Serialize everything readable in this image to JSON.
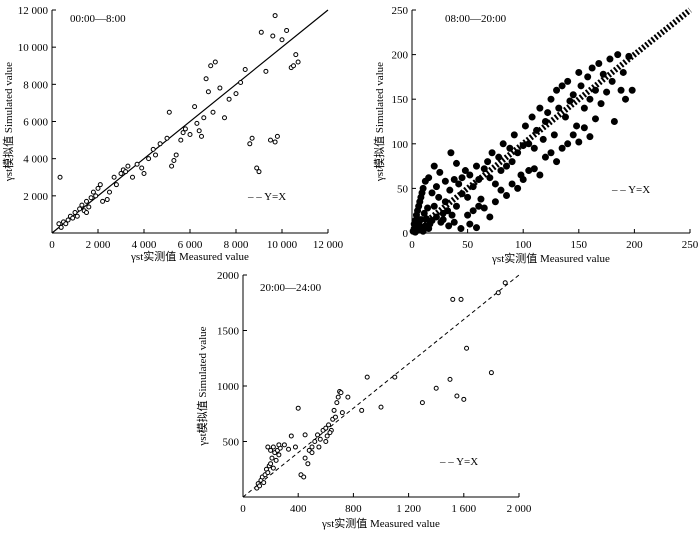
{
  "chart_data": [
    {
      "type": "scatter",
      "title": "00:00—8:00",
      "xlabel": "γst实测值 Measured value",
      "ylabel": "γst模拟值 Simulated value",
      "xlim": [
        0,
        12000
      ],
      "ylim": [
        0,
        12000
      ],
      "xticks": [
        0,
        2000,
        4000,
        6000,
        8000,
        10000,
        12000
      ],
      "xtick_labels": [
        "0",
        "2 000",
        "4 000",
        "6 000",
        "8 000",
        "10 000",
        "12 000"
      ],
      "yticks": [
        2000,
        4000,
        6000,
        8000,
        10000,
        12000
      ],
      "ytick_labels": [
        "2 000",
        "4 000",
        "6 000",
        "8 000",
        "10 000",
        "12 000"
      ],
      "reference_line": {
        "label": "Y=X",
        "style": "solid"
      },
      "legend_text": "– – Y=X",
      "legend_position": "bottom-right",
      "marker": "open-circle",
      "grid": false,
      "points": [
        [
          300,
          500
        ],
        [
          400,
          300
        ],
        [
          500,
          600
        ],
        [
          600,
          500
        ],
        [
          700,
          700
        ],
        [
          800,
          900
        ],
        [
          900,
          800
        ],
        [
          1000,
          1100
        ],
        [
          1100,
          900
        ],
        [
          1200,
          1300
        ],
        [
          1300,
          1500
        ],
        [
          1400,
          1200
        ],
        [
          1500,
          1700
        ],
        [
          1600,
          1400
        ],
        [
          1700,
          1900
        ],
        [
          1800,
          2200
        ],
        [
          1900,
          2000
        ],
        [
          2000,
          2400
        ],
        [
          2100,
          2600
        ],
        [
          350,
          3000
        ],
        [
          2400,
          1800
        ],
        [
          2500,
          2200
        ],
        [
          2700,
          3000
        ],
        [
          2800,
          2600
        ],
        [
          3000,
          3200
        ],
        [
          3100,
          3400
        ],
        [
          3200,
          3300
        ],
        [
          3300,
          3600
        ],
        [
          3500,
          3000
        ],
        [
          3700,
          3700
        ],
        [
          3900,
          3500
        ],
        [
          4000,
          3200
        ],
        [
          4200,
          4000
        ],
        [
          4400,
          4500
        ],
        [
          4500,
          4200
        ],
        [
          4700,
          4800
        ],
        [
          5000,
          5100
        ],
        [
          5100,
          6500
        ],
        [
          5200,
          3600
        ],
        [
          5300,
          3900
        ],
        [
          5400,
          4200
        ],
        [
          5600,
          5000
        ],
        [
          5800,
          5600
        ],
        [
          6000,
          5300
        ],
        [
          6200,
          6800
        ],
        [
          6400,
          5500
        ],
        [
          6500,
          5200
        ],
        [
          6600,
          6200
        ],
        [
          6700,
          8300
        ],
        [
          6800,
          7600
        ],
        [
          6900,
          9000
        ],
        [
          7000,
          6500
        ],
        [
          7100,
          9200
        ],
        [
          7300,
          7800
        ],
        [
          7500,
          6200
        ],
        [
          7700,
          7200
        ],
        [
          8000,
          7500
        ],
        [
          8200,
          8100
        ],
        [
          8400,
          8800
        ],
        [
          8600,
          4800
        ],
        [
          8700,
          5100
        ],
        [
          8900,
          3500
        ],
        [
          9000,
          3300
        ],
        [
          9100,
          10800
        ],
        [
          9300,
          8700
        ],
        [
          9500,
          5000
        ],
        [
          9600,
          10600
        ],
        [
          9700,
          11700
        ],
        [
          9800,
          5200
        ],
        [
          10000,
          10400
        ],
        [
          10200,
          10900
        ],
        [
          10400,
          8900
        ],
        [
          10500,
          9000
        ],
        [
          10600,
          9600
        ],
        [
          10700,
          9200
        ],
        [
          9700,
          4900
        ],
        [
          6300,
          5900
        ],
        [
          5700,
          5400
        ],
        [
          2200,
          1700
        ],
        [
          1500,
          1100
        ]
      ]
    },
    {
      "type": "scatter",
      "title": "08:00—20:00",
      "xlabel": "γst实测值 Measured value",
      "ylabel": "γst模拟值 Simulated value",
      "xlim": [
        0,
        250
      ],
      "ylim": [
        0,
        250
      ],
      "xticks": [
        0,
        50,
        100,
        150,
        200,
        250
      ],
      "xtick_labels": [
        "0",
        "50",
        "100",
        "150",
        "200",
        "250"
      ],
      "yticks": [
        0,
        50,
        100,
        150,
        200,
        250
      ],
      "ytick_labels": [
        "0",
        "50",
        "100",
        "150",
        "200",
        "250"
      ],
      "reference_line": {
        "label": "Y=X",
        "style": "thick-dotted"
      },
      "legend_text": "– – Y=X",
      "legend_position": "bottom-right",
      "marker": "filled-circle",
      "grid": false,
      "points": [
        [
          1,
          2
        ],
        [
          2,
          5
        ],
        [
          3,
          1
        ],
        [
          4,
          8
        ],
        [
          5,
          3
        ],
        [
          6,
          12
        ],
        [
          7,
          4
        ],
        [
          8,
          15
        ],
        [
          9,
          6
        ],
        [
          10,
          2
        ],
        [
          2,
          10
        ],
        [
          3,
          14
        ],
        [
          4,
          20
        ],
        [
          5,
          25
        ],
        [
          6,
          30
        ],
        [
          7,
          35
        ],
        [
          8,
          40
        ],
        [
          9,
          45
        ],
        [
          10,
          50
        ],
        [
          11,
          22
        ],
        [
          12,
          8
        ],
        [
          13,
          16
        ],
        [
          14,
          28
        ],
        [
          15,
          5
        ],
        [
          16,
          10
        ],
        [
          18,
          14
        ],
        [
          20,
          30
        ],
        [
          22,
          18
        ],
        [
          24,
          40
        ],
        [
          26,
          12
        ],
        [
          28,
          22
        ],
        [
          30,
          35
        ],
        [
          32,
          25
        ],
        [
          34,
          48
        ],
        [
          36,
          20
        ],
        [
          38,
          60
        ],
        [
          40,
          30
        ],
        [
          42,
          55
        ],
        [
          45,
          44
        ],
        [
          48,
          70
        ],
        [
          50,
          40
        ],
        [
          52,
          65
        ],
        [
          55,
          52
        ],
        [
          58,
          75
        ],
        [
          60,
          60
        ],
        [
          62,
          38
        ],
        [
          65,
          72
        ],
        [
          68,
          80
        ],
        [
          70,
          62
        ],
        [
          72,
          90
        ],
        [
          75,
          55
        ],
        [
          78,
          85
        ],
        [
          80,
          70
        ],
        [
          82,
          100
        ],
        [
          85,
          75
        ],
        [
          88,
          95
        ],
        [
          90,
          80
        ],
        [
          92,
          110
        ],
        [
          95,
          90
        ],
        [
          98,
          65
        ],
        [
          100,
          98
        ],
        [
          102,
          120
        ],
        [
          105,
          100
        ],
        [
          108,
          130
        ],
        [
          110,
          95
        ],
        [
          112,
          115
        ],
        [
          115,
          140
        ],
        [
          118,
          105
        ],
        [
          120,
          125
        ],
        [
          122,
          135
        ],
        [
          125,
          150
        ],
        [
          128,
          110
        ],
        [
          130,
          160
        ],
        [
          132,
          140
        ],
        [
          135,
          165
        ],
        [
          138,
          130
        ],
        [
          140,
          170
        ],
        [
          142,
          148
        ],
        [
          145,
          155
        ],
        [
          148,
          120
        ],
        [
          150,
          180
        ],
        [
          152,
          165
        ],
        [
          155,
          140
        ],
        [
          158,
          175
        ],
        [
          160,
          150
        ],
        [
          162,
          185
        ],
        [
          165,
          160
        ],
        [
          168,
          190
        ],
        [
          170,
          145
        ],
        [
          172,
          178
        ],
        [
          175,
          158
        ],
        [
          178,
          195
        ],
        [
          180,
          170
        ],
        [
          182,
          125
        ],
        [
          185,
          200
        ],
        [
          188,
          160
        ],
        [
          190,
          180
        ],
        [
          192,
          150
        ],
        [
          195,
          198
        ],
        [
          198,
          160
        ],
        [
          20,
          75
        ],
        [
          25,
          68
        ],
        [
          30,
          58
        ],
        [
          35,
          90
        ],
        [
          40,
          78
        ],
        [
          45,
          62
        ],
        [
          50,
          20
        ],
        [
          55,
          25
        ],
        [
          60,
          30
        ],
        [
          65,
          28
        ],
        [
          70,
          18
        ],
        [
          75,
          35
        ],
        [
          80,
          48
        ],
        [
          85,
          42
        ],
        [
          90,
          55
        ],
        [
          95,
          50
        ],
        [
          100,
          60
        ],
        [
          105,
          70
        ],
        [
          110,
          72
        ],
        [
          115,
          65
        ],
        [
          120,
          85
        ],
        [
          125,
          90
        ],
        [
          130,
          80
        ],
        [
          135,
          95
        ],
        [
          140,
          100
        ],
        [
          145,
          110
        ],
        [
          150,
          102
        ],
        [
          155,
          118
        ],
        [
          160,
          108
        ],
        [
          165,
          128
        ],
        [
          12,
          58
        ],
        [
          15,
          62
        ],
        [
          18,
          45
        ],
        [
          22,
          52
        ],
        [
          28,
          15
        ],
        [
          33,
          8
        ],
        [
          38,
          12
        ],
        [
          44,
          5
        ],
        [
          52,
          10
        ],
        [
          58,
          6
        ]
      ]
    },
    {
      "type": "scatter",
      "title": "20:00—24:00",
      "xlabel": "γst实测值 Measured value",
      "ylabel": "γst模拟值 Simulated value",
      "xlim": [
        0,
        2000
      ],
      "ylim": [
        0,
        2000
      ],
      "xticks": [
        0,
        400,
        800,
        1200,
        1600,
        2000
      ],
      "xtick_labels": [
        "0",
        "400",
        "800",
        "1 200",
        "1 600",
        "2 000"
      ],
      "yticks": [
        500,
        1000,
        1500,
        2000
      ],
      "ytick_labels": [
        "500",
        "1000",
        "1500",
        "2000"
      ],
      "reference_line": {
        "label": "Y=X",
        "style": "dashed"
      },
      "legend_text": "– – Y=X",
      "legend_position": "bottom-right",
      "marker": "open-circle",
      "grid": false,
      "points": [
        [
          100,
          80
        ],
        [
          110,
          120
        ],
        [
          120,
          100
        ],
        [
          130,
          150
        ],
        [
          140,
          180
        ],
        [
          150,
          130
        ],
        [
          160,
          200
        ],
        [
          170,
          250
        ],
        [
          180,
          220
        ],
        [
          190,
          280
        ],
        [
          200,
          300
        ],
        [
          210,
          350
        ],
        [
          220,
          260
        ],
        [
          230,
          400
        ],
        [
          240,
          330
        ],
        [
          250,
          420
        ],
        [
          260,
          380
        ],
        [
          270,
          440
        ],
        [
          180,
          450
        ],
        [
          330,
          430
        ],
        [
          350,
          550
        ],
        [
          380,
          450
        ],
        [
          400,
          800
        ],
        [
          420,
          200
        ],
        [
          440,
          180
        ],
        [
          450,
          350
        ],
        [
          470,
          300
        ],
        [
          480,
          420
        ],
        [
          500,
          450
        ],
        [
          520,
          500
        ],
        [
          540,
          560
        ],
        [
          560,
          520
        ],
        [
          580,
          600
        ],
        [
          600,
          620
        ],
        [
          610,
          550
        ],
        [
          620,
          650
        ],
        [
          640,
          600
        ],
        [
          650,
          700
        ],
        [
          660,
          780
        ],
        [
          670,
          720
        ],
        [
          680,
          850
        ],
        [
          690,
          900
        ],
        [
          700,
          950
        ],
        [
          710,
          940
        ],
        [
          720,
          760
        ],
        [
          760,
          900
        ],
        [
          860,
          780
        ],
        [
          900,
          1080
        ],
        [
          1000,
          810
        ],
        [
          1100,
          1080
        ],
        [
          1300,
          850
        ],
        [
          1400,
          980
        ],
        [
          1500,
          1060
        ],
        [
          1520,
          1780
        ],
        [
          1550,
          910
        ],
        [
          1580,
          1780
        ],
        [
          1600,
          880
        ],
        [
          1620,
          1340
        ],
        [
          1800,
          1120
        ],
        [
          1850,
          1840
        ],
        [
          1900,
          1930
        ],
        [
          600,
          500
        ],
        [
          630,
          580
        ],
        [
          550,
          450
        ],
        [
          500,
          400
        ],
        [
          450,
          560
        ],
        [
          300,
          470
        ],
        [
          260,
          470
        ],
        [
          220,
          450
        ],
        [
          200,
          420
        ]
      ]
    }
  ]
}
